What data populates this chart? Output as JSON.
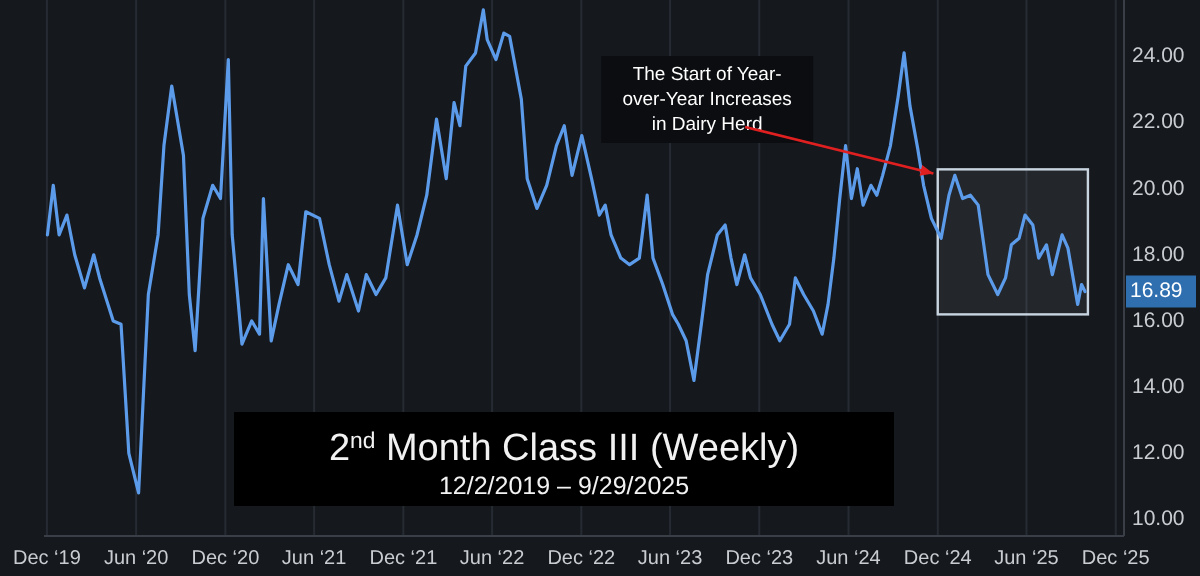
{
  "chart_data": {
    "type": "line",
    "title": "2$^{nd}$ Month Class III (Weekly)",
    "subtitle": "12/2/2019 – 9/29/2025",
    "x": [
      "2019-12-02",
      "2019-12-14",
      "2019-12-26",
      "2020-01-11",
      "2020-01-27",
      "2020-02-16",
      "2020-03-06",
      "2020-03-18",
      "2020-04-15",
      "2020-05-01",
      "2020-05-17",
      "2020-06-06",
      "2020-06-26",
      "2020-07-16",
      "2020-07-28",
      "2020-08-13",
      "2020-09-06",
      "2020-09-18",
      "2020-09-30",
      "2020-10-16",
      "2020-11-05",
      "2020-11-21",
      "2020-12-07",
      "2020-12-15",
      "2021-01-04",
      "2021-01-24",
      "2021-02-09",
      "2021-02-17",
      "2021-03-05",
      "2021-03-21",
      "2021-04-09",
      "2021-04-29",
      "2021-05-15",
      "2021-06-12",
      "2021-07-02",
      "2021-07-22",
      "2021-08-07",
      "2021-08-31",
      "2021-09-16",
      "2021-10-06",
      "2021-10-26",
      "2021-11-19",
      "2021-12-09",
      "2021-12-29",
      "2022-01-18",
      "2022-02-07",
      "2022-02-27",
      "2022-03-15",
      "2022-03-27",
      "2022-04-08",
      "2022-04-28",
      "2022-05-14",
      "2022-05-22",
      "2022-06-09",
      "2022-06-25",
      "2022-07-07",
      "2022-07-31",
      "2022-08-12",
      "2022-09-01",
      "2022-09-21",
      "2022-10-11",
      "2022-10-27",
      "2022-11-12",
      "2022-12-02",
      "2022-12-22",
      "2023-01-07",
      "2023-01-19",
      "2023-01-31",
      "2023-02-20",
      "2023-03-10",
      "2023-03-30",
      "2023-04-15",
      "2023-04-27",
      "2023-05-17",
      "2023-06-06",
      "2023-06-18",
      "2023-07-04",
      "2023-07-20",
      "2023-08-05",
      "2023-08-17",
      "2023-09-06",
      "2023-09-22",
      "2023-10-04",
      "2023-10-16",
      "2023-11-01",
      "2023-11-13",
      "2023-12-03",
      "2023-12-27",
      "2024-01-12",
      "2024-02-01",
      "2024-02-13",
      "2024-03-01",
      "2024-03-21",
      "2024-04-08",
      "2024-04-20",
      "2024-05-02",
      "2024-05-14",
      "2024-05-26",
      "2024-06-07",
      "2024-06-19",
      "2024-07-01",
      "2024-07-17",
      "2024-07-29",
      "2024-08-10",
      "2024-08-26",
      "2024-09-11",
      "2024-09-23",
      "2024-10-05",
      "2024-10-21",
      "2024-11-02",
      "2024-11-18",
      "2024-12-08",
      "2024-12-24",
      "2025-01-05",
      "2025-01-21",
      "2025-02-06",
      "2025-02-22",
      "2025-03-14",
      "2025-04-03",
      "2025-04-19",
      "2025-05-01",
      "2025-05-17",
      "2025-05-29",
      "2025-06-14",
      "2025-06-26",
      "2025-07-12",
      "2025-07-24",
      "2025-08-13",
      "2025-08-25",
      "2025-09-14",
      "2025-09-22",
      "2025-09-29"
    ],
    "series": [
      {
        "color": "#5b9bea",
        "values": [
          18.6,
          20.1,
          18.6,
          19.2,
          18.0,
          17.0,
          18.0,
          17.3,
          16.0,
          15.9,
          12.0,
          10.8,
          16.8,
          18.6,
          21.3,
          23.1,
          21.0,
          16.8,
          15.1,
          19.1,
          20.1,
          19.7,
          23.9,
          18.6,
          15.3,
          16.0,
          15.6,
          19.7,
          15.4,
          16.5,
          17.7,
          17.1,
          19.3,
          19.1,
          17.7,
          16.6,
          17.4,
          16.3,
          17.4,
          16.8,
          17.3,
          19.5,
          17.7,
          18.6,
          19.8,
          22.1,
          20.3,
          22.6,
          21.9,
          23.7,
          24.1,
          25.4,
          24.5,
          23.9,
          24.7,
          24.6,
          22.7,
          20.3,
          19.4,
          20.1,
          21.3,
          21.9,
          20.4,
          21.6,
          20.3,
          19.2,
          19.5,
          18.6,
          17.9,
          17.7,
          17.9,
          19.8,
          17.9,
          17.1,
          16.2,
          15.9,
          15.4,
          14.2,
          16.0,
          17.4,
          18.6,
          18.9,
          17.9,
          17.1,
          18.0,
          17.3,
          16.8,
          15.9,
          15.4,
          15.9,
          17.3,
          16.8,
          16.3,
          15.6,
          16.5,
          17.9,
          19.7,
          21.3,
          19.7,
          20.6,
          19.5,
          20.1,
          19.8,
          20.4,
          21.3,
          22.8,
          24.1,
          22.5,
          21.2,
          20.1,
          19.1,
          18.5,
          19.8,
          20.4,
          19.7,
          19.8,
          19.5,
          17.4,
          16.8,
          17.3,
          18.3,
          18.5,
          19.2,
          18.9,
          17.9,
          18.3,
          17.4,
          18.6,
          18.2,
          16.5,
          17.1,
          16.89
        ]
      }
    ],
    "xlim": [
      "2019-11-25",
      "2025-12-18"
    ],
    "xticks": [
      {
        "value": "2019-12-01",
        "label": "Dec ‘19"
      },
      {
        "value": "2020-06-01",
        "label": "Jun ‘20"
      },
      {
        "value": "2020-12-01",
        "label": "Dec ‘20"
      },
      {
        "value": "2021-06-01",
        "label": "Jun ‘21"
      },
      {
        "value": "2021-12-01",
        "label": "Dec ‘21"
      },
      {
        "value": "2022-06-01",
        "label": "Jun ‘22"
      },
      {
        "value": "2022-12-01",
        "label": "Dec ‘22"
      },
      {
        "value": "2023-06-01",
        "label": "Jun ‘23"
      },
      {
        "value": "2023-12-01",
        "label": "Dec ‘23"
      },
      {
        "value": "2024-06-01",
        "label": "Jun ‘24"
      },
      {
        "value": "2024-12-01",
        "label": "Dec ‘24"
      },
      {
        "value": "2025-06-01",
        "label": "Jun ‘25"
      },
      {
        "value": "2025-12-01",
        "label": "Dec ‘25"
      }
    ],
    "ylim": [
      9.5,
      25.7
    ],
    "yticks": [
      {
        "value": 10,
        "label": "10.00"
      },
      {
        "value": 12,
        "label": "12.00"
      },
      {
        "value": 14,
        "label": "14.00"
      },
      {
        "value": 16,
        "label": "16.00"
      },
      {
        "value": 18,
        "label": "18.00"
      },
      {
        "value": 20,
        "label": "20.00"
      },
      {
        "value": 22,
        "label": "22.00"
      },
      {
        "value": 24,
        "label": "24.00"
      }
    ],
    "grid": "x",
    "annotations": [
      {
        "text": "The Start of Year-over-Year Increases in Dairy Herd",
        "x": "2024-12-08",
        "y": 20.4
      },
      {
        "text": "16.89",
        "x": "2025-09-29",
        "y": 16.89
      }
    ],
    "bands": [
      {
        "axis": "x",
        "from": "2024-12-01",
        "to": "2025-10-05",
        "color": "#c8d4e0"
      }
    ]
  }
}
